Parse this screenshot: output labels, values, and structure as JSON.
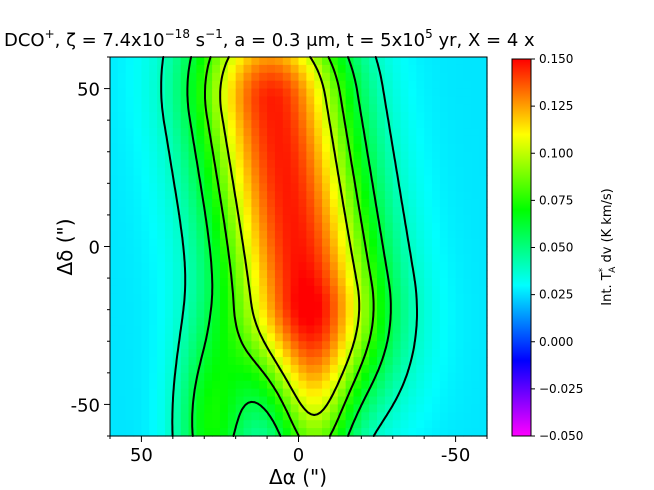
{
  "chart_data": {
    "type": "heatmap",
    "title": {
      "prefix": "DCO",
      "prefix_sup": "+",
      "zeta_label": ", ζ = 7.4x10",
      "zeta_exp": "−18",
      "zeta_unit": " s",
      "zeta_unit_exp": "−1",
      "rest": ", a = 0.3 μm, t = 5x10",
      "t_exp": "5",
      "tail": " yr, X =  4 x"
    },
    "xlabel": "Δα (\")",
    "ylabel": "Δδ (\")",
    "xlim": [
      60,
      -60
    ],
    "ylim": [
      -60,
      60
    ],
    "xticks": [
      50,
      0,
      -50
    ],
    "xtick_labels": [
      "50",
      "0",
      "-50"
    ],
    "yticks": [
      50,
      0,
      -50
    ],
    "ytick_labels": [
      "50",
      "0",
      "-50"
    ],
    "colorbar": {
      "label_main": "Int. T",
      "label_sup": "*",
      "label_sub": "A",
      "label_rest": " dv  (K km/s)",
      "min": -0.05,
      "max": 0.15,
      "ticks": [
        0.15,
        0.125,
        0.1,
        0.075,
        0.05,
        0.025,
        0.0,
        -0.025,
        -0.05
      ],
      "tick_labels": [
        "0.150",
        "0.125",
        "0.100",
        "0.075",
        "0.050",
        "0.025",
        "0.000",
        "−0.025",
        "−0.050"
      ],
      "colormap": "gist_rainbow_r"
    },
    "grid": false,
    "contour_levels": [
      0.1,
      0.08,
      0.06,
      0.04
    ],
    "emission_model": {
      "ridge": {
        "x_at_top": 8,
        "x_at_bottom": -2,
        "y_top": 45,
        "y_bottom": -15
      },
      "peak": 0.12,
      "sigma_perp": 17,
      "sigma_along": 24,
      "leg_centers_x": [
        28,
        -5
      ],
      "leg_amplitude": 0.042,
      "leg_sigma": 8,
      "leg_ycenter": -58,
      "leg_ysigma": 22,
      "background": 0.026
    }
  }
}
